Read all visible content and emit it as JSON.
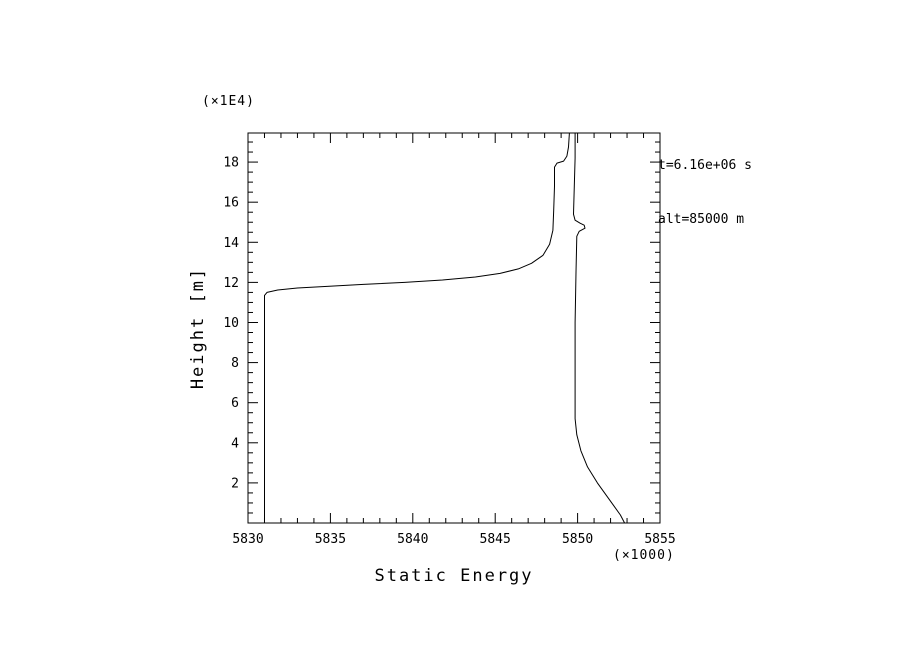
{
  "page": {
    "background": "#ffffff",
    "foreground": "#000000"
  },
  "chart_data": {
    "type": "line",
    "title": "",
    "xlabel": "Static Energy",
    "ylabel": "Height [m]",
    "x_scale_note": "(×1000)",
    "y_scale_note": "(×1E4)",
    "xlim": [
      5830,
      5855
    ],
    "ylim": [
      0,
      19.45
    ],
    "x_major_ticks": [
      5830,
      5835,
      5840,
      5845,
      5850,
      5855
    ],
    "x_minor_step": 1,
    "y_major_ticks": [
      2,
      4,
      6,
      8,
      10,
      12,
      14,
      16,
      18
    ],
    "y_minor_step": 0.5,
    "grid": false,
    "legend": "none",
    "line_color": "#000000",
    "annotations": {
      "time_label": "t=6.16e+06 s",
      "alt_label": "alt=85000 m"
    },
    "series": [
      {
        "name": "profile-left-branch",
        "points": [
          [
            5831.0,
            0.12
          ],
          [
            5831.0,
            11.35
          ],
          [
            5831.15,
            11.5
          ],
          [
            5831.8,
            11.62
          ],
          [
            5833.0,
            11.72
          ],
          [
            5834.8,
            11.8
          ],
          [
            5837.0,
            11.9
          ],
          [
            5839.5,
            12.0
          ],
          [
            5841.8,
            12.12
          ],
          [
            5843.8,
            12.27
          ],
          [
            5845.3,
            12.45
          ],
          [
            5846.4,
            12.67
          ],
          [
            5847.2,
            12.95
          ],
          [
            5847.9,
            13.35
          ],
          [
            5848.3,
            13.9
          ],
          [
            5848.5,
            14.6
          ],
          [
            5848.55,
            15.6
          ],
          [
            5848.6,
            16.8
          ],
          [
            5848.6,
            17.75
          ],
          [
            5848.75,
            17.95
          ],
          [
            5849.15,
            18.05
          ],
          [
            5849.35,
            18.3
          ],
          [
            5849.45,
            18.75
          ],
          [
            5849.5,
            19.45
          ]
        ]
      },
      {
        "name": "profile-right-branch",
        "points": [
          [
            5849.85,
            19.45
          ],
          [
            5849.85,
            18.2
          ],
          [
            5849.8,
            16.8
          ],
          [
            5849.75,
            15.4
          ],
          [
            5849.85,
            15.1
          ],
          [
            5850.15,
            14.95
          ],
          [
            5850.4,
            14.85
          ],
          [
            5850.45,
            14.7
          ],
          [
            5850.1,
            14.55
          ],
          [
            5849.95,
            14.3
          ],
          [
            5849.9,
            12.5
          ],
          [
            5849.85,
            10.0
          ],
          [
            5849.85,
            7.5
          ],
          [
            5849.85,
            5.2
          ],
          [
            5849.95,
            4.4
          ],
          [
            5850.2,
            3.6
          ],
          [
            5850.6,
            2.8
          ],
          [
            5851.2,
            2.0
          ],
          [
            5851.9,
            1.2
          ],
          [
            5852.6,
            0.4
          ],
          [
            5852.85,
            0.0
          ]
        ]
      }
    ]
  }
}
